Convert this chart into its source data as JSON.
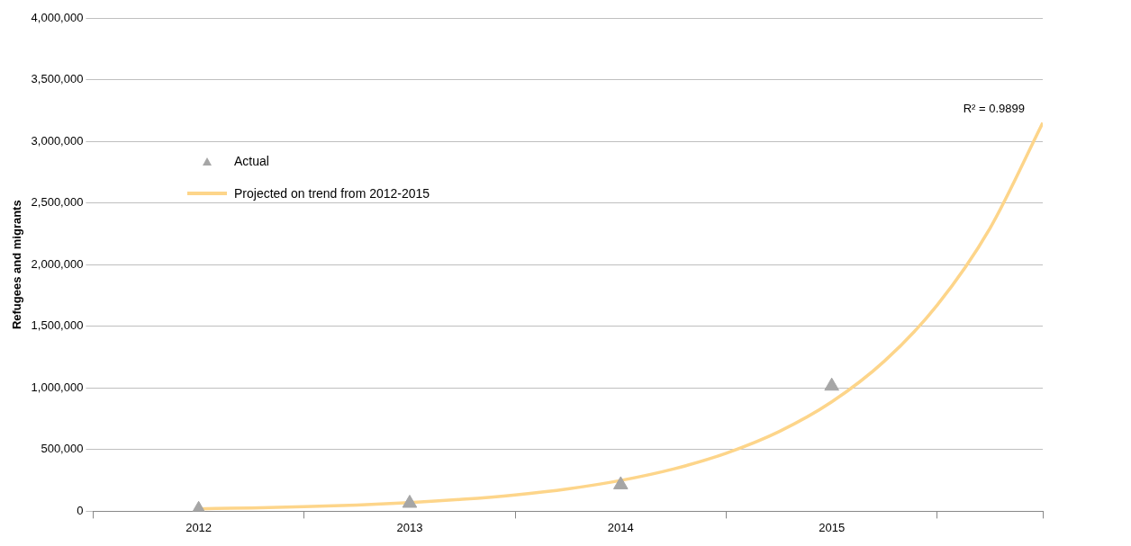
{
  "chart_data": {
    "type": "scatter",
    "ylabel": "Refugees and migrants",
    "series": [
      {
        "name": "Actual",
        "type": "scatter",
        "marker": "triangle",
        "color": "#a6a6a6",
        "x": [
          2012,
          2013,
          2014,
          2015
        ],
        "values": [
          15000,
          65000,
          215000,
          1015000
        ]
      },
      {
        "name": "Projected on trend from 2012-2015",
        "type": "line",
        "marker": "none",
        "color": "#fdd58a",
        "x": [
          2012,
          2012.25,
          2012.5,
          2012.75,
          2013,
          2013.25,
          2013.5,
          2013.75,
          2014,
          2014.25,
          2014.5,
          2014.75,
          2015,
          2015.25,
          2015.5,
          2015.75,
          2016
        ],
        "values": [
          20000,
          27000,
          37000,
          51000,
          70000,
          97000,
          133000,
          182000,
          250000,
          343000,
          471000,
          646000,
          887000,
          1218000,
          1672000,
          2295000,
          3150000
        ]
      }
    ],
    "xlim": [
      2011.5,
      2016
    ],
    "xticks": [
      {
        "value": 2011.5,
        "label": null
      },
      2012,
      {
        "value": 2012.5,
        "label": null
      },
      2013,
      {
        "value": 2013.5,
        "label": null
      },
      2014,
      {
        "value": 2014.5,
        "label": null
      },
      2015,
      {
        "value": 2015.5,
        "label": null
      },
      {
        "value": 2016,
        "label": null
      }
    ],
    "ylim": [
      0,
      4000000
    ],
    "yticks": [
      0,
      {
        "value": 500000,
        "label": "500,000"
      },
      {
        "value": 1000000,
        "label": "1,000,000"
      },
      {
        "value": 1500000,
        "label": "1,500,000"
      },
      {
        "value": 2000000,
        "label": "2,000,000"
      },
      {
        "value": 2500000,
        "label": "2,500,000"
      },
      {
        "value": 3000000,
        "label": "3,000,000"
      },
      {
        "value": 3500000,
        "label": "3,500,000"
      },
      {
        "value": 4000000,
        "label": "4,000,000"
      }
    ],
    "grid": "y",
    "legend": "top left",
    "annotations": [
      "R² = 0.9899"
    ]
  }
}
